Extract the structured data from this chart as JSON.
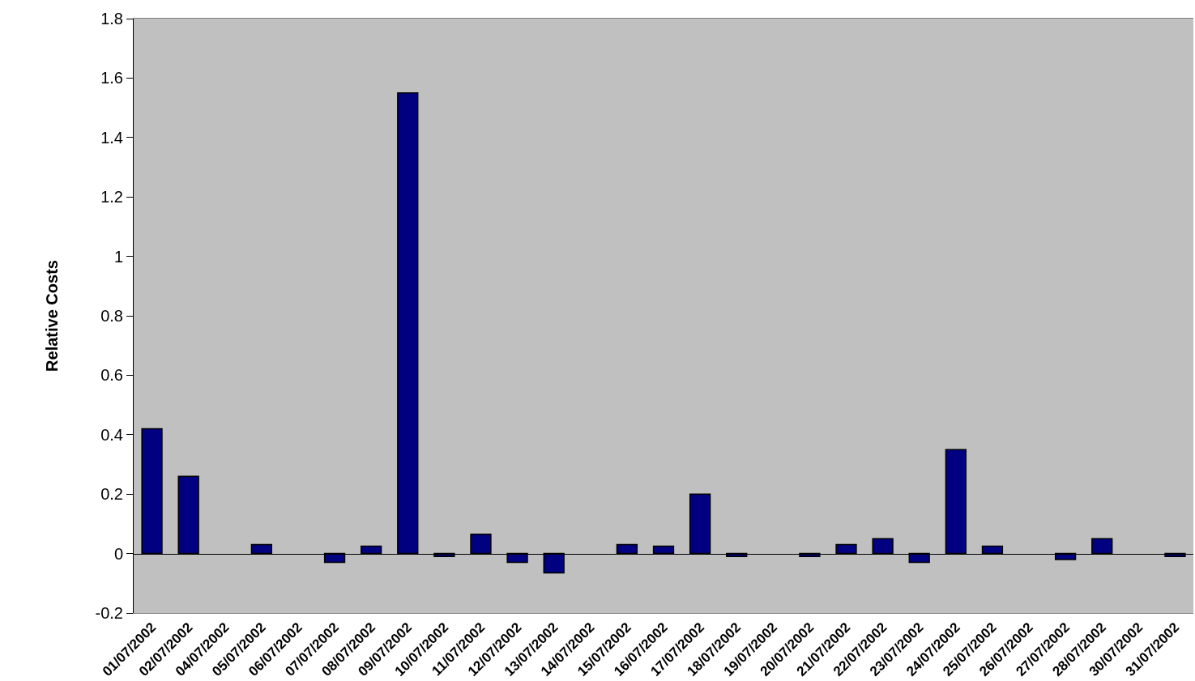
{
  "chart_data": {
    "type": "bar",
    "ylabel": "Relative Costs",
    "categories": [
      "01/07/2002",
      "02/07/2002",
      "04/07/2002",
      "05/07/2002",
      "06/07/2002",
      "07/07/2002",
      "08/07/2002",
      "09/07/2002",
      "10/07/2002",
      "11/07/2002",
      "12/07/2002",
      "13/07/2002",
      "14/07/2002",
      "15/07/2002",
      "16/07/2002",
      "17/07/2002",
      "18/07/2002",
      "19/07/2002",
      "20/07/2002",
      "21/07/2002",
      "22/07/2002",
      "23/07/2002",
      "24/07/2002",
      "25/07/2002",
      "26/07/2002",
      "27/07/2002",
      "28/07/2002",
      "30/07/2002",
      "31/07/2002"
    ],
    "values": [
      0.42,
      0.26,
      null,
      0.03,
      null,
      -0.03,
      0.025,
      1.55,
      -0.01,
      0.065,
      -0.03,
      -0.065,
      null,
      0.03,
      0.025,
      0.2,
      -0.01,
      null,
      -0.01,
      0.03,
      0.05,
      -0.03,
      0.35,
      0.025,
      null,
      -0.02,
      0.05,
      null,
      -0.01
    ],
    "color": "#000080",
    "ylim": [
      -0.2,
      1.8
    ],
    "yticks": [
      -0.2,
      0,
      0.2,
      0.4,
      0.6,
      0.8,
      1,
      1.2,
      1.4,
      1.6,
      1.8
    ]
  }
}
